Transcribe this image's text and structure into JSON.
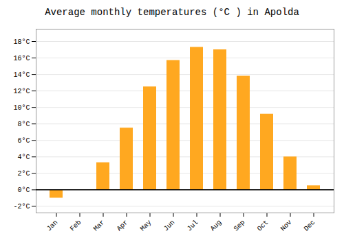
{
  "chart_data": {
    "type": "bar",
    "title": "Average monthly temperatures (°C ) in Apolda",
    "categories": [
      "Jan",
      "Feb",
      "Mar",
      "Apr",
      "May",
      "Jun",
      "Jul",
      "Aug",
      "Sep",
      "Oct",
      "Nov",
      "Dec"
    ],
    "values": [
      -1.0,
      0.0,
      3.3,
      7.5,
      12.5,
      15.7,
      17.3,
      17.0,
      13.8,
      9.2,
      4.0,
      0.5
    ],
    "color": "#FFA820",
    "ylim": [
      -2.8,
      19.5
    ],
    "yticks": [
      {
        "value": -2,
        "label": "-2°C"
      },
      {
        "value": 0,
        "label": "0°C"
      },
      {
        "value": 2,
        "label": "2°C"
      },
      {
        "value": 4,
        "label": "4°C"
      },
      {
        "value": 6,
        "label": "6°C"
      },
      {
        "value": 8,
        "label": "8°C"
      },
      {
        "value": 10,
        "label": "10°C"
      },
      {
        "value": 12,
        "label": "12°C"
      },
      {
        "value": 14,
        "label": "14°C"
      },
      {
        "value": 16,
        "label": "16°C"
      },
      {
        "value": 18,
        "label": "18°C"
      }
    ],
    "grid": true
  }
}
